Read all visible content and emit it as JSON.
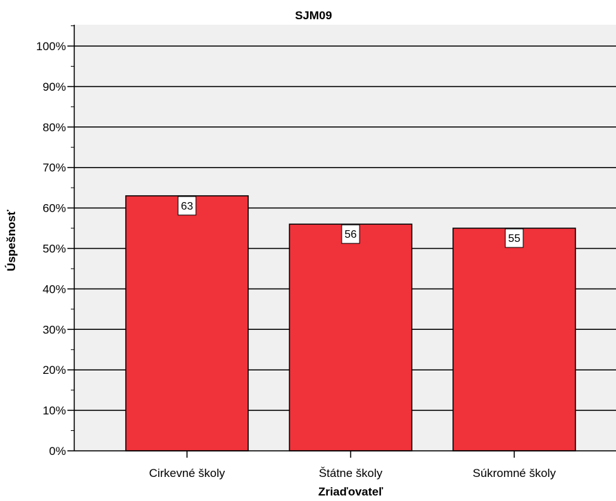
{
  "chart_data": {
    "type": "bar",
    "title": "SJM09",
    "xlabel": "Zriaďovateľ",
    "ylabel": "Úspešnosť",
    "categories": [
      "Cirkevné školy",
      "Štátne školy",
      "Súkromné školy"
    ],
    "values": [
      63,
      56,
      55
    ],
    "data_labels": [
      "63",
      "56",
      "55"
    ],
    "ylim": [
      0,
      100
    ],
    "yticks": [
      0,
      10,
      20,
      30,
      40,
      50,
      60,
      70,
      80,
      90,
      100
    ],
    "ytick_labels": [
      "0%",
      "10%",
      "20%",
      "30%",
      "40%",
      "50%",
      "60%",
      "70%",
      "80%",
      "90%",
      "100%"
    ],
    "grid": true,
    "bar_color": "#f0323a",
    "plot_background": "#f0f0f0"
  }
}
